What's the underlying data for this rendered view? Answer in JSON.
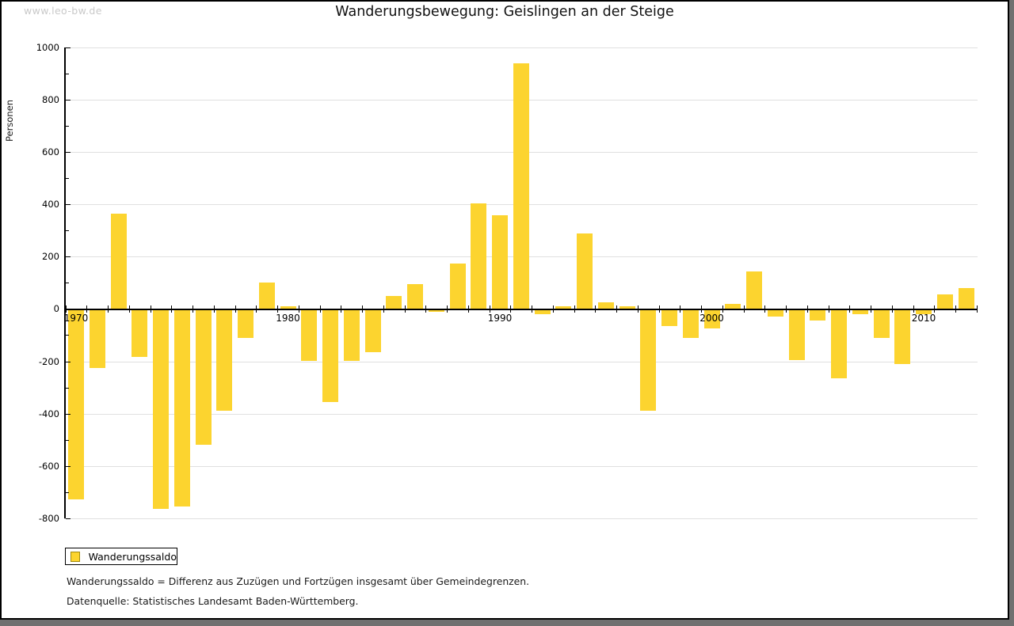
{
  "watermark": "www.leo-bw.de",
  "title": "Wanderungsbewegung: Geislingen an der Steige",
  "y_axis": {
    "label": "Personen",
    "max": 1000,
    "min": -800,
    "major_step": 200,
    "minor_step": 100,
    "tick_labels": [
      "1000",
      "800",
      "600",
      "400",
      "200",
      "0",
      "-200",
      "-400",
      "-600",
      "-800"
    ]
  },
  "x_axis": {
    "decade_labels": [
      "1970",
      "1980",
      "1990",
      "2000",
      "2010"
    ]
  },
  "legend": {
    "label": "Wanderungssaldo"
  },
  "footnotes": {
    "line1": "Wanderungssaldo = Differenz aus Zuzügen und Fortzügen insgesamt über Gemeindegrenzen.",
    "line2": "Datenquelle: Statistisches Landesamt Baden-Württemberg."
  },
  "colors": {
    "bar": "#FCD42F",
    "legend_swatch_border": "#A08A10",
    "grid": "#E0E0E0",
    "axis": "#000000",
    "watermark": "#C9C9C9",
    "frame_shadow": "#707070"
  },
  "chart_data": {
    "type": "bar",
    "title": "Wanderungsbewegung: Geislingen an der Steige",
    "xlabel": "",
    "ylabel": "Personen",
    "ylim": [
      -800,
      1000
    ],
    "grid": "horizontal-major",
    "legend_position": "bottom-left",
    "series": [
      {
        "name": "Wanderungssaldo",
        "x": [
          1970,
          1971,
          1972,
          1973,
          1974,
          1975,
          1976,
          1977,
          1978,
          1979,
          1980,
          1981,
          1982,
          1983,
          1984,
          1985,
          1986,
          1987,
          1988,
          1989,
          1990,
          1991,
          1992,
          1993,
          1994,
          1995,
          1996,
          1997,
          1998,
          1999,
          2000,
          2001,
          2002,
          2003,
          2004,
          2005,
          2006,
          2007,
          2008,
          2009,
          2010,
          2011,
          2012
        ],
        "values": [
          -730,
          -225,
          365,
          -185,
          -765,
          -755,
          -520,
          -390,
          -110,
          100,
          10,
          -200,
          -355,
          -200,
          -165,
          50,
          95,
          -10,
          175,
          405,
          360,
          940,
          -20,
          10,
          290,
          25,
          10,
          -390,
          -65,
          -110,
          -75,
          20,
          145,
          -30,
          -195,
          -45,
          -265,
          -20,
          -110,
          -210,
          -20,
          55,
          80
        ]
      }
    ]
  }
}
